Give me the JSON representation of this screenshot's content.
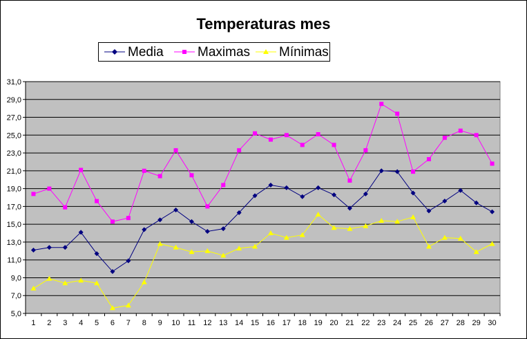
{
  "chart_data": {
    "type": "line",
    "title": "Temperaturas mes",
    "xlabel": "",
    "ylabel": "",
    "legend_position": "top",
    "grid": true,
    "ylim": [
      5.0,
      31.0
    ],
    "ytick_step": 2,
    "yticks": [
      "5,0",
      "7,0",
      "9,0",
      "11,0",
      "13,0",
      "15,0",
      "17,0",
      "19,0",
      "21,0",
      "23,0",
      "25,0",
      "27,0",
      "29,0",
      "31,0"
    ],
    "x": [
      1,
      2,
      3,
      4,
      5,
      6,
      7,
      8,
      9,
      10,
      11,
      12,
      13,
      14,
      15,
      16,
      17,
      18,
      19,
      20,
      21,
      22,
      23,
      24,
      25,
      26,
      27,
      28,
      29,
      30
    ],
    "series": [
      {
        "name": "Media",
        "color": "#000080",
        "marker": "diamond",
        "values": [
          12.1,
          12.4,
          12.4,
          14.1,
          11.7,
          9.7,
          10.9,
          14.4,
          15.5,
          16.6,
          15.3,
          14.2,
          14.5,
          16.3,
          18.2,
          19.4,
          19.1,
          18.1,
          19.1,
          18.3,
          16.8,
          18.4,
          21.0,
          20.9,
          18.5,
          16.5,
          17.6,
          18.8,
          17.4,
          16.4
        ]
      },
      {
        "name": "Maximas",
        "color": "#ff00ff",
        "marker": "square",
        "values": [
          18.4,
          19.0,
          16.9,
          21.1,
          17.6,
          15.3,
          15.7,
          21.0,
          20.4,
          23.3,
          20.5,
          17.0,
          19.4,
          23.3,
          25.2,
          24.5,
          25.0,
          23.9,
          25.1,
          23.9,
          19.9,
          23.3,
          28.5,
          27.4,
          20.9,
          22.3,
          24.7,
          25.5,
          25.0,
          21.8
        ]
      },
      {
        "name": "Mínimas",
        "color": "#ffff00",
        "marker": "triangle",
        "values": [
          7.8,
          8.9,
          8.4,
          8.7,
          8.4,
          5.6,
          5.9,
          8.5,
          12.8,
          12.4,
          11.9,
          12.0,
          11.5,
          12.3,
          12.5,
          14.0,
          13.5,
          13.8,
          16.1,
          14.6,
          14.5,
          14.8,
          15.4,
          15.3,
          15.8,
          12.5,
          13.5,
          13.4,
          11.9,
          12.8
        ]
      }
    ],
    "plot_background": "#c0c0c0",
    "gridline_color": "#000000"
  }
}
